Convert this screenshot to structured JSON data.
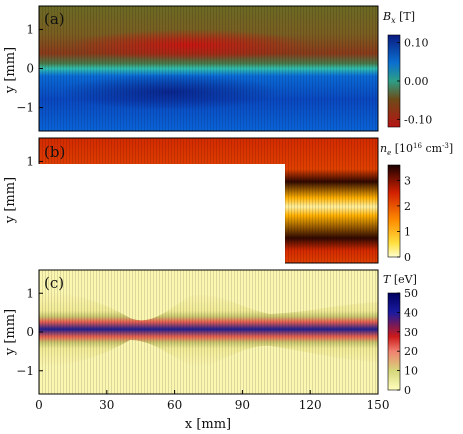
{
  "chart_data": [
    {
      "type": "heatmap",
      "panel_label": "(a)",
      "xlabel": "",
      "ylabel": "y [mm]",
      "xlim": [
        0,
        150
      ],
      "ylim": [
        -1.6,
        1.6
      ],
      "y_ticks": [
        1,
        0,
        -1
      ],
      "y_tick_labels": [
        "1",
        "0",
        "−1"
      ],
      "colorbar": {
        "quantity": "B",
        "subscript": "x",
        "unit": " [T]",
        "ticks": [
          0.1,
          0.0,
          -0.1
        ],
        "tick_labels": [
          "0.10",
          "0.00",
          "-0.10"
        ],
        "range": [
          -0.12,
          0.12
        ],
        "colors": [
          "#b81414",
          "#6e4a18",
          "#2d9f86",
          "#0a6fd0",
          "#0a1a80"
        ]
      }
    },
    {
      "type": "heatmap",
      "panel_label": "(b)",
      "xlabel": "",
      "ylabel": "y [mm]",
      "xlim": [
        0,
        150
      ],
      "ylim": [
        -1.6,
        1.6
      ],
      "y_ticks": [
        1
      ],
      "y_tick_labels": [
        "1"
      ],
      "colorbar": {
        "quantity": "n",
        "subscript": "e",
        "unit": " [10",
        "unit_sup": "16",
        "unit_tail": " cm",
        "unit_tail_sup": "-3",
        "unit_close": "]",
        "ticks": [
          3,
          2,
          1,
          0
        ],
        "tick_labels": [
          "3",
          "2",
          "1",
          "0"
        ],
        "range": [
          0,
          3.6
        ],
        "colors": [
          "#ffffd0",
          "#ffe040",
          "#ff8c00",
          "#d22000",
          "#1a0000"
        ]
      }
    },
    {
      "type": "heatmap",
      "panel_label": "(c)",
      "xlabel": "x [mm]",
      "ylabel": "y [mm]",
      "xlim": [
        0,
        150
      ],
      "ylim": [
        -1.6,
        1.6
      ],
      "x_ticks": [
        0,
        30,
        60,
        90,
        120,
        150
      ],
      "x_tick_labels": [
        "0",
        "30",
        "60",
        "90",
        "120",
        "150"
      ],
      "y_ticks": [
        1,
        0,
        -1
      ],
      "y_tick_labels": [
        "1",
        "0",
        "−1"
      ],
      "colorbar": {
        "quantity": "T",
        "unit": " [eV]",
        "ticks": [
          50,
          40,
          30,
          20,
          10,
          0
        ],
        "tick_labels": [
          "50",
          "40",
          "30",
          "20",
          "10",
          "0"
        ],
        "range": [
          0,
          50
        ],
        "colors": [
          "#ffffc0",
          "#d6d67a",
          "#f08070",
          "#cc1a1a",
          "#1a1aa0",
          "#000060"
        ]
      }
    }
  ]
}
